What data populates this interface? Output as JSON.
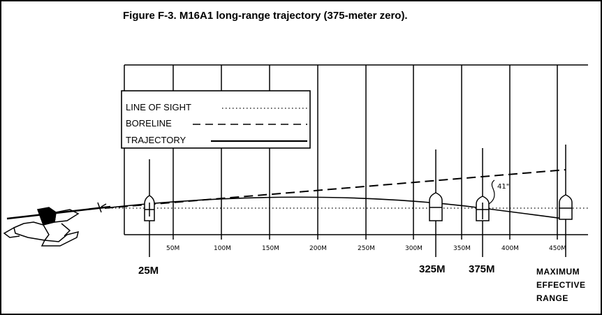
{
  "title": "Figure F-3. M16A1 long-range trajectory (375-meter zero).",
  "legend": {
    "line_of_sight": "LINE OF SIGHT",
    "boreline": "BORELINE",
    "trajectory": "TRAJECTORY"
  },
  "axis_ticks": [
    "50M",
    "100M",
    "150M",
    "200M",
    "250M",
    "300M",
    "350M",
    "400M",
    "450M"
  ],
  "target_labels": {
    "t25": "25M",
    "t325": "325M",
    "t375": "375M"
  },
  "max_range": [
    "MAXIMUM",
    "EFFECTIVE",
    "RANGE"
  ],
  "annotation": "41\""
}
